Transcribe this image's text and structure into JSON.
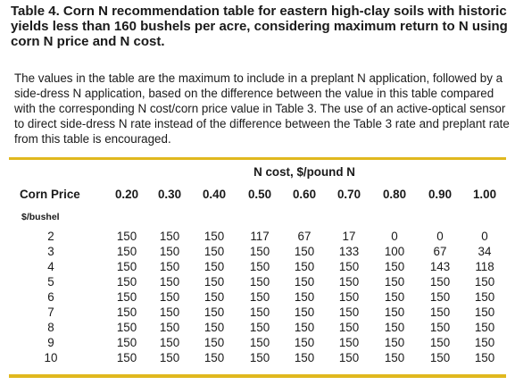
{
  "title": "Table 4.  Corn N recommendation table for eastern high-clay soils with historic yields less than 160 bushels per acre, considering maximum return to N using corn N price and N cost.",
  "description": "The values in the table are the maximum to include in a preplant N application, followed by a side-dress N application, based on the difference between the value in this table compared with the corresponding N cost/corn price value in Table 3. The use of an active-optical sensor to direct side-dress N rate instead of the difference between the Table 3 rate and preplant rate from this table is encouraged.",
  "table": {
    "group_header": "N cost, $/pound N",
    "row_header": "Corn Price",
    "row_unit": "$/bushel",
    "columns": [
      "0.20",
      "0.30",
      "0.40",
      "0.50",
      "0.60",
      "0.70",
      "0.80",
      "0.90",
      "1.00"
    ],
    "rows": [
      {
        "price": "2",
        "values": [
          "150",
          "150",
          "150",
          "117",
          "67",
          "17",
          "0",
          "0",
          "0"
        ]
      },
      {
        "price": "3",
        "values": [
          "150",
          "150",
          "150",
          "150",
          "150",
          "133",
          "100",
          "67",
          "34"
        ]
      },
      {
        "price": "4",
        "values": [
          "150",
          "150",
          "150",
          "150",
          "150",
          "150",
          "150",
          "143",
          "118"
        ]
      },
      {
        "price": "5",
        "values": [
          "150",
          "150",
          "150",
          "150",
          "150",
          "150",
          "150",
          "150",
          "150"
        ]
      },
      {
        "price": "6",
        "values": [
          "150",
          "150",
          "150",
          "150",
          "150",
          "150",
          "150",
          "150",
          "150"
        ]
      },
      {
        "price": "7",
        "values": [
          "150",
          "150",
          "150",
          "150",
          "150",
          "150",
          "150",
          "150",
          "150"
        ]
      },
      {
        "price": "8",
        "values": [
          "150",
          "150",
          "150",
          "150",
          "150",
          "150",
          "150",
          "150",
          "150"
        ]
      },
      {
        "price": "9",
        "values": [
          "150",
          "150",
          "150",
          "150",
          "150",
          "150",
          "150",
          "150",
          "150"
        ]
      },
      {
        "price": "10",
        "values": [
          "150",
          "150",
          "150",
          "150",
          "150",
          "150",
          "150",
          "150",
          "150"
        ]
      }
    ]
  },
  "colors": {
    "rule": "#e0b81e",
    "text": "#1a1a1a"
  }
}
